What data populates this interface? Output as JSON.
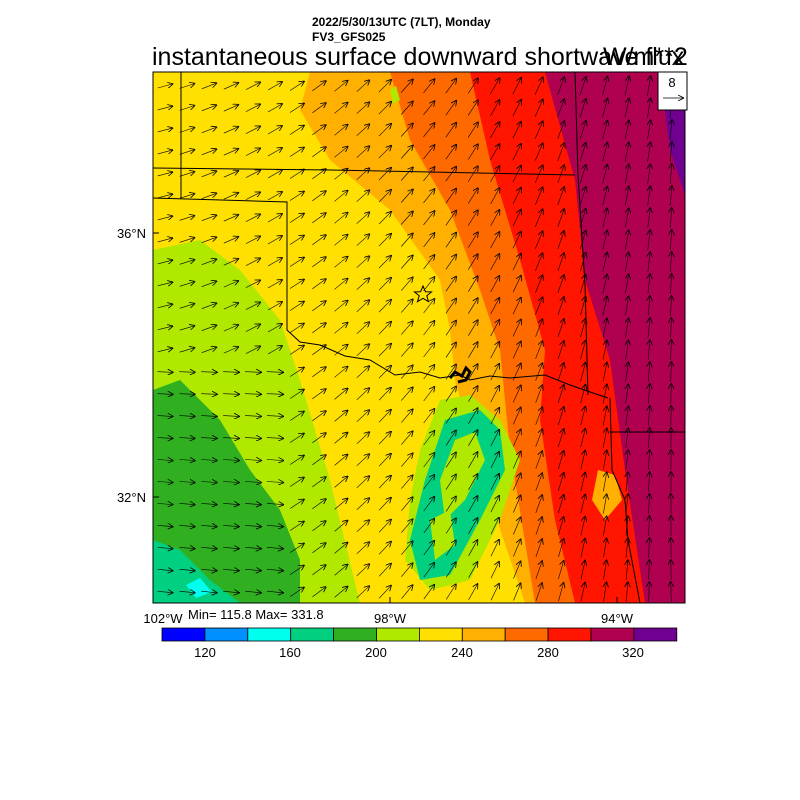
{
  "header": {
    "datetime": "2022/5/30/13UTC (7LT), Monday",
    "model": "FV3_GFS025",
    "title": "instantaneous surface downward shortwave flux",
    "units": "W/m**2"
  },
  "map": {
    "lat_labels": [
      "36°N",
      "32°N"
    ],
    "lon_labels": [
      "102°W",
      "98°W",
      "94°W"
    ],
    "reference_vector_label": "8",
    "station_marker": "star"
  },
  "stats": {
    "label": "Min= 115.8 Max= 331.8",
    "min": 115.8,
    "max": 331.8
  },
  "colorbar": {
    "ticks": [
      "120",
      "160",
      "200",
      "240",
      "280",
      "320"
    ],
    "bins": [
      {
        "color": "#0000ff"
      },
      {
        "color": "#0090ff"
      },
      {
        "color": "#00ffef"
      },
      {
        "color": "#00d080"
      },
      {
        "color": "#30b020"
      },
      {
        "color": "#b0e800"
      },
      {
        "color": "#ffe000"
      },
      {
        "color": "#ffb000"
      },
      {
        "color": "#ff6a00"
      },
      {
        "color": "#ff1500"
      },
      {
        "color": "#b00050"
      },
      {
        "color": "#700090"
      }
    ]
  }
}
